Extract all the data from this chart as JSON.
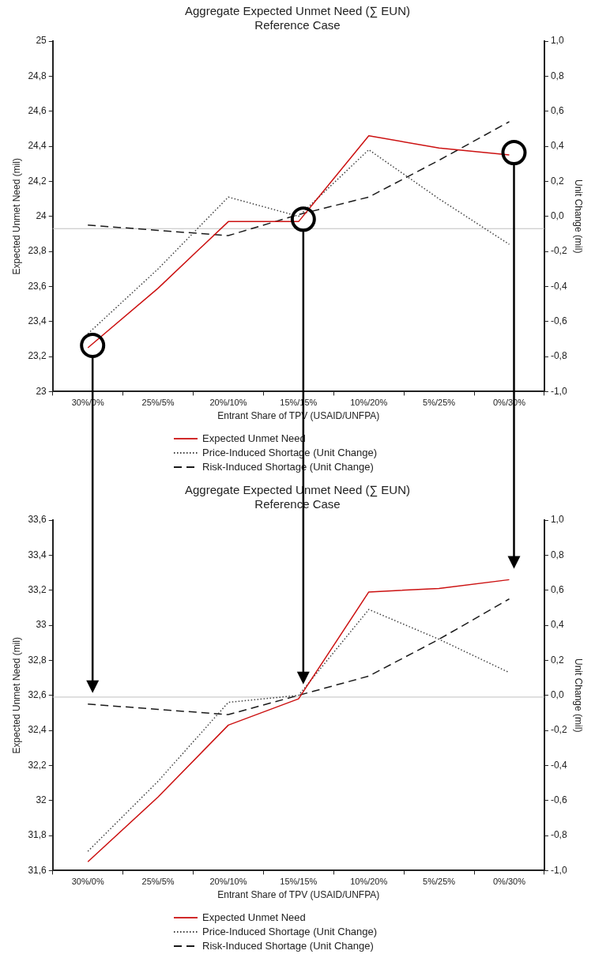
{
  "chart_data": [
    {
      "type": "line",
      "title": "Aggregate Expected Unmet Need (∑ EUN)",
      "subtitle": "Reference Case",
      "xlabel": "Entrant Share of TPV (USAID/UNFPA)",
      "ylabel": "Expected Unmet Need (mil)",
      "y2label": "Unit Change (mil)",
      "categories": [
        "30%/0%",
        "25%/5%",
        "20%/10%",
        "15%/15%",
        "10%/20%",
        "5%/25%",
        "0%/30%"
      ],
      "series": [
        {
          "name": "Expected Unmet Need",
          "color": "#cc1111",
          "line_style": "solid",
          "values": [
            23.25,
            23.59,
            23.97,
            23.97,
            24.46,
            24.39,
            24.35
          ]
        },
        {
          "name": "Price-Induced Shortage (Unit Change)",
          "color": "#404040",
          "line_style": "dotted",
          "axis": "y2",
          "values": [
            -0.67,
            -0.3,
            0.11,
            0.0,
            0.38,
            0.1,
            -0.16
          ]
        },
        {
          "name": "Risk-Induced Shortage (Unit Change)",
          "color": "#1a1a1a",
          "line_style": "dashed",
          "axis": "y2",
          "values": [
            -0.05,
            -0.08,
            -0.11,
            0.01,
            0.11,
            0.32,
            0.54
          ]
        }
      ],
      "ylim": [
        23,
        25
      ],
      "yticks": [
        23,
        {
          "value": 23.2,
          "label": "23,2"
        },
        {
          "value": 23.4,
          "label": "23,4"
        },
        {
          "value": 23.6,
          "label": "23,6"
        },
        {
          "value": 23.8,
          "label": "23,8"
        },
        24,
        {
          "value": 24.2,
          "label": "24,2"
        },
        {
          "value": 24.4,
          "label": "24,4"
        },
        {
          "value": 24.6,
          "label": "24,6"
        },
        {
          "value": 24.8,
          "label": "24,8"
        },
        25
      ],
      "y2lim": [
        -1,
        1
      ],
      "y2ticks": [
        {
          "value": -1,
          "label": "-1,0"
        },
        {
          "value": -0.8,
          "label": "-0,8"
        },
        {
          "value": -0.6,
          "label": "-0,6"
        },
        {
          "value": -0.4,
          "label": "-0,4"
        },
        {
          "value": -0.2,
          "label": "-0,2"
        },
        {
          "value": 0,
          "label": "0,0"
        },
        {
          "value": 0.2,
          "label": "0,2"
        },
        {
          "value": 0.4,
          "label": "0,4"
        },
        {
          "value": 0.6,
          "label": "0,6"
        },
        {
          "value": 0.8,
          "label": "0,8"
        },
        {
          "value": 1,
          "label": "1,0"
        }
      ],
      "ref_lines": [
        {
          "axis": "y2",
          "value": -0.07,
          "color": "#c0c0c0"
        }
      ],
      "marker": "none",
      "legend": "bottom"
    },
    {
      "type": "line",
      "title": "Aggregate Expected Unmet Need (∑ EUN)",
      "subtitle": "Reference Case",
      "xlabel": "Entrant Share of TPV (USAID/UNFPA)",
      "ylabel": "Expected Unmet Need (mil)",
      "y2label": "Unit Change (mil)",
      "categories": [
        "30%/0%",
        "25%/5%",
        "20%/10%",
        "15%/15%",
        "10%/20%",
        "5%/25%",
        "0%/30%"
      ],
      "series": [
        {
          "name": "Expected Unmet Need",
          "color": "#cc1111",
          "line_style": "solid",
          "values": [
            31.65,
            32.02,
            32.43,
            32.58,
            33.19,
            33.21,
            33.26
          ]
        },
        {
          "name": "Price-Induced Shortage (Unit Change)",
          "color": "#404040",
          "line_style": "dotted",
          "axis": "y2",
          "values": [
            -0.89,
            -0.49,
            -0.04,
            0.0,
            0.49,
            0.32,
            0.13
          ]
        },
        {
          "name": "Risk-Induced Shortage (Unit Change)",
          "color": "#1a1a1a",
          "line_style": "dashed",
          "axis": "y2",
          "values": [
            -0.05,
            -0.08,
            -0.11,
            0.0,
            0.11,
            0.32,
            0.55
          ]
        }
      ],
      "ylim": [
        31.6,
        33.6
      ],
      "yticks": [
        {
          "value": 31.6,
          "label": "31,6"
        },
        {
          "value": 31.8,
          "label": "31,8"
        },
        32,
        {
          "value": 32.2,
          "label": "32,2"
        },
        {
          "value": 32.4,
          "label": "32,4"
        },
        {
          "value": 32.6,
          "label": "32,6"
        },
        {
          "value": 32.8,
          "label": "32,8"
        },
        33,
        {
          "value": 33.2,
          "label": "33,2"
        },
        {
          "value": 33.4,
          "label": "33,4"
        },
        {
          "value": 33.6,
          "label": "33,6"
        }
      ],
      "y2lim": [
        -1,
        1
      ],
      "y2ticks": [
        {
          "value": -1,
          "label": "-1,0"
        },
        {
          "value": -0.8,
          "label": "-0,8"
        },
        {
          "value": -0.6,
          "label": "-0,6"
        },
        {
          "value": -0.4,
          "label": "-0,4"
        },
        {
          "value": -0.2,
          "label": "-0,2"
        },
        {
          "value": 0,
          "label": "0,0"
        },
        {
          "value": 0.2,
          "label": "0,2"
        },
        {
          "value": 0.4,
          "label": "0,4"
        },
        {
          "value": 0.6,
          "label": "0,6"
        },
        {
          "value": 0.8,
          "label": "0,8"
        },
        {
          "value": 1,
          "label": "1,0"
        }
      ],
      "ref_lines": [
        {
          "axis": "y2",
          "value": -0.01,
          "color": "#c0c0c0"
        }
      ],
      "marker": "none",
      "legend": "bottom"
    }
  ]
}
